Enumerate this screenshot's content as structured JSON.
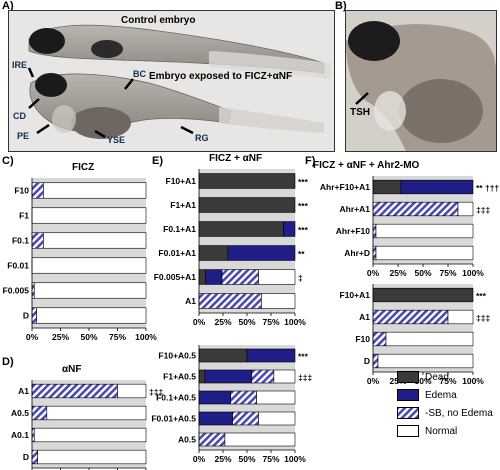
{
  "panel_labels": {
    "a": "A)",
    "b": "B)",
    "c": "C)",
    "d": "D)",
    "e": "E)",
    "f": "F)"
  },
  "photo_a": {
    "control_label": "Control embryo",
    "exposed_label": "Embryo exposed to FICZ+αNF",
    "annotations": {
      "ire": "IRE",
      "bc": "BC",
      "cd": "CD",
      "pe": "PE",
      "yse": "YSE",
      "rg": "RG"
    }
  },
  "photo_b": {
    "annotation": "TSH"
  },
  "colors": {
    "dead": "#3a3a3a",
    "edema": "#1f1d86",
    "sb": "#4a4ab0",
    "normal": "#ffffff",
    "gap": "#d9d9d9"
  },
  "legend": {
    "dead": "Dead",
    "edema": "Edema",
    "sb": "-SB, no Edema",
    "normal": "Normal"
  },
  "tick_labels": [
    "0%",
    "25%",
    "50%",
    "75%",
    "100%"
  ],
  "chart_data": [
    {
      "id": "C",
      "type": "bar",
      "stacked": true,
      "orientation": "horizontal",
      "title": "FICZ",
      "categories": [
        "F10",
        "F1",
        "F0.1",
        "F0.01",
        "F0.005",
        "D"
      ],
      "series": [
        {
          "name": "Dead",
          "values": [
            0,
            0,
            0,
            0,
            0,
            0
          ]
        },
        {
          "name": "Edema",
          "values": [
            0,
            0,
            0,
            0,
            0,
            0
          ]
        },
        {
          "name": "-SB, no Edema",
          "values": [
            10,
            0,
            10,
            0,
            2,
            4
          ]
        },
        {
          "name": "Normal",
          "values": [
            90,
            100,
            90,
            100,
            98,
            96
          ]
        }
      ],
      "annotations": [
        "",
        "",
        "",
        "",
        "",
        ""
      ],
      "xlim": [
        0,
        100
      ]
    },
    {
      "id": "D",
      "type": "bar",
      "stacked": true,
      "orientation": "horizontal",
      "title": "αNF",
      "categories": [
        "A1",
        "A0.5",
        "A0.1",
        "D"
      ],
      "series": [
        {
          "name": "Dead",
          "values": [
            0,
            0,
            0,
            0
          ]
        },
        {
          "name": "Edema",
          "values": [
            0,
            0,
            0,
            0
          ]
        },
        {
          "name": "-SB, no Edema",
          "values": [
            75,
            13,
            2,
            5
          ]
        },
        {
          "name": "Normal",
          "values": [
            25,
            87,
            98,
            95
          ]
        }
      ],
      "annotations": [
        "‡‡‡",
        "",
        "",
        ""
      ],
      "xlim": [
        0,
        100
      ]
    },
    {
      "id": "E1",
      "type": "bar",
      "stacked": true,
      "orientation": "horizontal",
      "title": "FICZ + αNF",
      "categories": [
        "F10+A1",
        "F1+A1",
        "F0.1+A1",
        "F0.01+A1",
        "F0.005+A1",
        "A1"
      ],
      "series": [
        {
          "name": "Dead",
          "values": [
            100,
            100,
            88,
            30,
            7,
            0
          ]
        },
        {
          "name": "Edema",
          "values": [
            0,
            0,
            12,
            70,
            17,
            0
          ]
        },
        {
          "name": "-SB, no Edema",
          "values": [
            0,
            0,
            0,
            0,
            38,
            65
          ]
        },
        {
          "name": "Normal",
          "values": [
            0,
            0,
            0,
            0,
            38,
            35
          ]
        }
      ],
      "annotations": [
        "***",
        "***",
        "***",
        "**",
        "‡",
        ""
      ],
      "xlim": [
        0,
        100
      ]
    },
    {
      "id": "E2",
      "type": "bar",
      "stacked": true,
      "orientation": "horizontal",
      "title": "",
      "categories": [
        "F10+A0.5",
        "F1+A0.5",
        "F0.1+A0.5",
        "F0.01+A0.5",
        "A0.5"
      ],
      "series": [
        {
          "name": "Dead",
          "values": [
            50,
            6,
            0,
            0,
            0
          ]
        },
        {
          "name": "Edema",
          "values": [
            50,
            49,
            33,
            35,
            0
          ]
        },
        {
          "name": "-SB, no Edema",
          "values": [
            0,
            23,
            27,
            27,
            27
          ]
        },
        {
          "name": "Normal",
          "values": [
            0,
            22,
            40,
            38,
            73
          ]
        }
      ],
      "annotations": [
        "***",
        "‡‡‡",
        "",
        "",
        ""
      ],
      "xlim": [
        0,
        100
      ]
    },
    {
      "id": "F1",
      "type": "bar",
      "stacked": true,
      "orientation": "horizontal",
      "title": "FICZ + αNF + Ahr2-MO",
      "categories": [
        "Ahr+F10+A1",
        "Ahr+A1",
        "Ahr+F10",
        "Ahr+D"
      ],
      "series": [
        {
          "name": "Dead",
          "values": [
            28,
            0,
            0,
            0
          ]
        },
        {
          "name": "Edema",
          "values": [
            72,
            0,
            0,
            0
          ]
        },
        {
          "name": "-SB, no Edema",
          "values": [
            0,
            85,
            3,
            3
          ]
        },
        {
          "name": "Normal",
          "values": [
            0,
            15,
            97,
            97
          ]
        }
      ],
      "annotations": [
        "** †††",
        "‡‡‡",
        "",
        ""
      ],
      "xlim": [
        0,
        100
      ]
    },
    {
      "id": "F2",
      "type": "bar",
      "stacked": true,
      "orientation": "horizontal",
      "title": "",
      "categories": [
        "F10+A1",
        "A1",
        "F10",
        "D"
      ],
      "series": [
        {
          "name": "Dead",
          "values": [
            100,
            0,
            0,
            0
          ]
        },
        {
          "name": "Edema",
          "values": [
            0,
            0,
            0,
            0
          ]
        },
        {
          "name": "-SB, no Edema",
          "values": [
            0,
            75,
            13,
            5
          ]
        },
        {
          "name": "Normal",
          "values": [
            0,
            25,
            87,
            95
          ]
        }
      ],
      "annotations": [
        "***",
        "‡‡‡",
        "",
        ""
      ],
      "xlim": [
        0,
        100
      ]
    }
  ]
}
